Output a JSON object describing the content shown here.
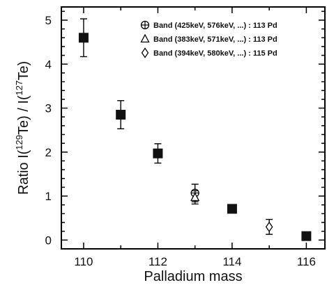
{
  "chart_data": {
    "type": "scatter",
    "xlabel": "Palladium mass",
    "ylabel": {
      "prefix": "Ratio  I(",
      "sup1": "129",
      "mid": "Te) / I(",
      "sup2": "127",
      "suffix": "Te)"
    },
    "xlim": [
      109.4,
      116.5
    ],
    "ylim": [
      -0.2,
      5.3
    ],
    "x_ticks": [
      110,
      112,
      114,
      116
    ],
    "y_ticks": [
      0,
      1,
      2,
      3,
      4,
      5
    ],
    "grid": false,
    "legend_position": "top-right",
    "series": [
      {
        "marker": "filled-square",
        "points": [
          {
            "x": 110,
            "y": 4.6,
            "err": 0.43
          },
          {
            "x": 111,
            "y": 2.85,
            "err": 0.32
          },
          {
            "x": 112,
            "y": 1.97,
            "err": 0.22
          },
          {
            "x": 114,
            "y": 0.71,
            "err": 0.05
          },
          {
            "x": 116,
            "y": 0.09,
            "err": 0.04
          }
        ]
      },
      {
        "name": "Band (425keV, 576keV, ...)  :  113 Pd",
        "marker": "circle-plus",
        "points": [
          {
            "x": 113,
            "y": 1.07,
            "err": 0.2
          }
        ]
      },
      {
        "name": "Band (383keV, 571keV, ...)  :  113 Pd",
        "marker": "triangle",
        "points": [
          {
            "x": 113,
            "y": 0.97,
            "err": 0.15
          }
        ]
      },
      {
        "name": "Band (394keV, 580keV, ...)  :  115 Pd",
        "marker": "diamond",
        "points": [
          {
            "x": 115,
            "y": 0.3,
            "err": 0.17
          }
        ]
      }
    ]
  }
}
